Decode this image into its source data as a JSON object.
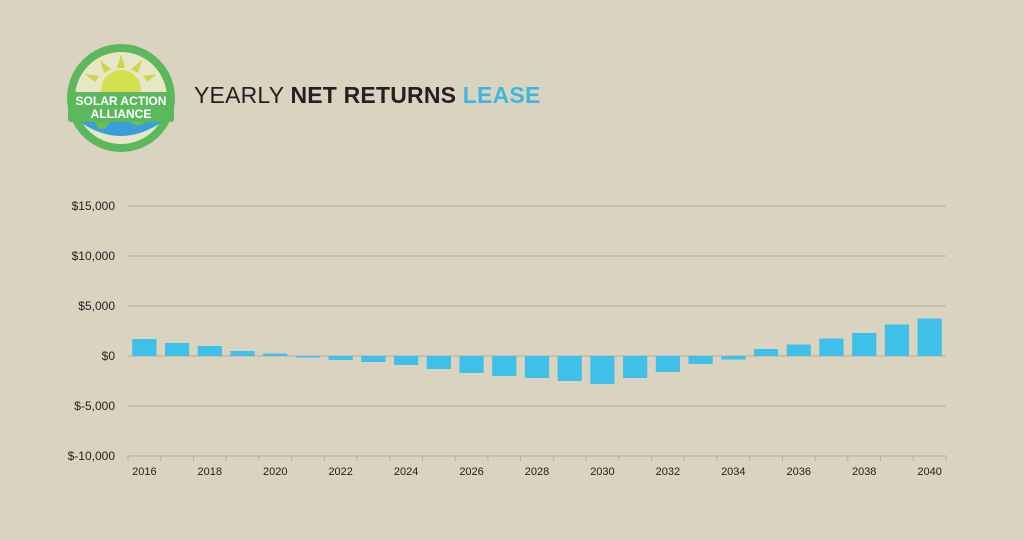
{
  "logo": {
    "line1": "SOLAR ACTION",
    "line2": "ALLIANCE"
  },
  "header": {
    "title_part1": "YEARLY",
    "title_part2": "NET RETURNS",
    "title_part3": "LEASE"
  },
  "colors": {
    "background": "#d9d3c0",
    "bar": "#3fc0e8",
    "accent": "#3fb8e0",
    "grid": "#b4ae9d",
    "logo_green": "#5cb85c"
  },
  "chart_data": {
    "type": "bar",
    "title": "YEARLY NET RETURNS LEASE",
    "xlabel": "",
    "ylabel": "",
    "ylim": [
      -10000,
      15000
    ],
    "yticks": [
      15000,
      10000,
      5000,
      0,
      -5000,
      -10000
    ],
    "ytick_labels": [
      "$15,000",
      "$10,000",
      "$5,000",
      "$0",
      "$-5,000",
      "$-10,000"
    ],
    "xtick_labels": [
      "2016",
      "2018",
      "2020",
      "2022",
      "2024",
      "2026",
      "2028",
      "2030",
      "2032",
      "2034",
      "2036",
      "2038",
      "2040"
    ],
    "grid": true,
    "categories": [
      "2016",
      "2017",
      "2018",
      "2019",
      "2020",
      "2021",
      "2022",
      "2023",
      "2024",
      "2025",
      "2026",
      "2027",
      "2028",
      "2029",
      "2030",
      "2031",
      "2032",
      "2033",
      "2034",
      "2035",
      "2036",
      "2037",
      "2038",
      "2039",
      "2040"
    ],
    "values": [
      1700,
      1300,
      1000,
      500,
      250,
      -150,
      -400,
      -600,
      -900,
      -1300,
      -1700,
      -2000,
      -2200,
      -2500,
      -2800,
      -2200,
      -1600,
      -800,
      -350,
      700,
      1150,
      1750,
      2300,
      3150,
      3750
    ]
  }
}
